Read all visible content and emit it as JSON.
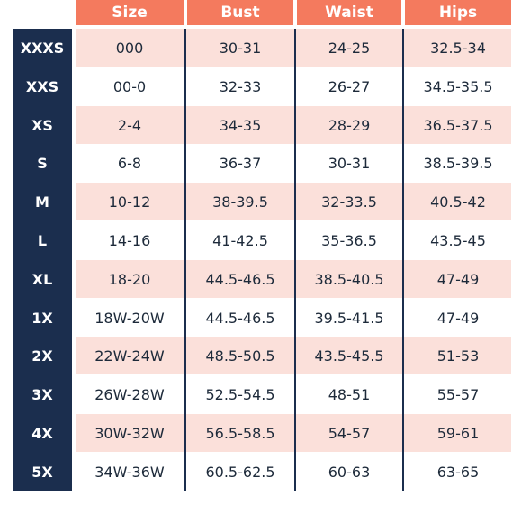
{
  "headers": [
    "Size",
    "Bust",
    "Waist",
    "Hips"
  ],
  "rows": [
    {
      "label": "XXXS",
      "size": "000",
      "bust": "30-31",
      "waist": "24-25",
      "hips": "32.5-34"
    },
    {
      "label": "XXS",
      "size": "00-0",
      "bust": "32-33",
      "waist": "26-27",
      "hips": "34.5-35.5"
    },
    {
      "label": "XS",
      "size": "2-4",
      "bust": "34-35",
      "waist": "28-29",
      "hips": "36.5-37.5"
    },
    {
      "label": "S",
      "size": "6-8",
      "bust": "36-37",
      "waist": "30-31",
      "hips": "38.5-39.5"
    },
    {
      "label": "M",
      "size": "10-12",
      "bust": "38-39.5",
      "waist": "32-33.5",
      "hips": "40.5-42"
    },
    {
      "label": "L",
      "size": "14-16",
      "bust": "41-42.5",
      "waist": "35-36.5",
      "hips": "43.5-45"
    },
    {
      "label": "XL",
      "size": "18-20",
      "bust": "44.5-46.5",
      "waist": "38.5-40.5",
      "hips": "47-49"
    },
    {
      "label": "1X",
      "size": "18W-20W",
      "bust": "44.5-46.5",
      "waist": "39.5-41.5",
      "hips": "47-49"
    },
    {
      "label": "2X",
      "size": "22W-24W",
      "bust": "48.5-50.5",
      "waist": "43.5-45.5",
      "hips": "51-53"
    },
    {
      "label": "3X",
      "size": "26W-28W",
      "bust": "52.5-54.5",
      "waist": "48-51",
      "hips": "55-57"
    },
    {
      "label": "4X",
      "size": "30W-32W",
      "bust": "56.5-58.5",
      "waist": "54-57",
      "hips": "59-61"
    },
    {
      "label": "5X",
      "size": "34W-36W",
      "bust": "60.5-62.5",
      "waist": "60-63",
      "hips": "63-65"
    }
  ],
  "colors": {
    "header": "#f47a5e",
    "sidebar": "#1b2e4e",
    "row_shade": "#fbe0da",
    "text": "#1d2a3a"
  }
}
